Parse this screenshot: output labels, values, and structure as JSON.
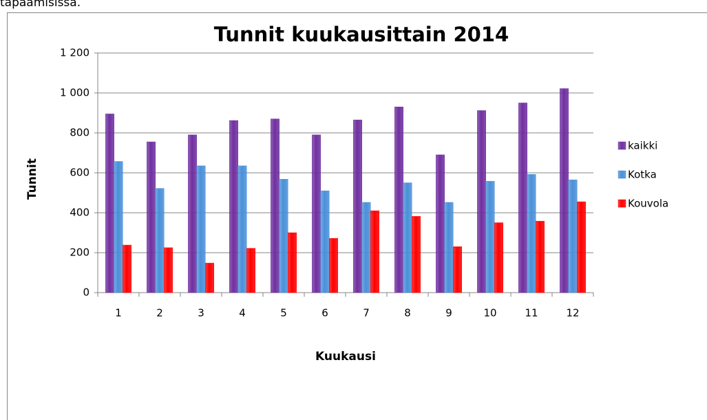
{
  "intro_text": "tapaamisissa.",
  "chart_data": {
    "type": "bar",
    "title": "Tunnit kuukausittain 2014",
    "x_label": "Kuukausi",
    "y_label": "Tunnit",
    "categories": [
      "1",
      "2",
      "3",
      "4",
      "5",
      "6",
      "7",
      "8",
      "9",
      "10",
      "11",
      "12"
    ],
    "series": [
      {
        "name": "kaikki",
        "color": "#7030a0",
        "values": [
          895,
          755,
          790,
          862,
          870,
          790,
          865,
          930,
          690,
          912,
          950,
          1022
        ]
      },
      {
        "name": "Kotka",
        "color": "#4a90d9",
        "values": [
          657,
          522,
          635,
          635,
          568,
          510,
          452,
          550,
          452,
          558,
          592,
          565
        ]
      },
      {
        "name": "Kouvola",
        "color": "#ff0000",
        "values": [
          238,
          225,
          148,
          222,
          300,
          272,
          410,
          382,
          230,
          350,
          358,
          455
        ]
      }
    ],
    "ylim": [
      0,
      1200
    ],
    "yticks": [
      0,
      200,
      400,
      600,
      800,
      {
        "value": 1000,
        "label": "1 000"
      },
      {
        "value": 1200,
        "label": "1 200"
      }
    ],
    "grid": true,
    "legend": "right"
  }
}
